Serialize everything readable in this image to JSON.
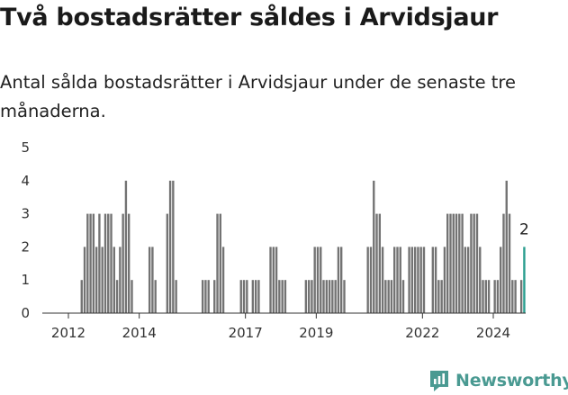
{
  "header": {
    "title": "Två bostadsrätter såldes i Arvidsjaur",
    "subtitle": "Antal sålda bostadsrätter i Arvidsjaur under de senaste tre månaderna."
  },
  "brand": {
    "name": "Newsworthy",
    "icon": "newsworthy-logo-icon",
    "color": "#4a9a92"
  },
  "colors": {
    "bar": "#737373",
    "highlight": "#2a9d8f",
    "axis": "#333333",
    "grid": "#e0e0e0"
  },
  "chart_data": {
    "type": "bar",
    "ylim": [
      0,
      5
    ],
    "yticks": [
      0,
      1,
      2,
      3,
      4,
      5
    ],
    "xlim": [
      2011.5,
      2025.5
    ],
    "xticks": [
      2012,
      2014,
      2017,
      2019,
      2022,
      2024
    ],
    "xtick_labels": [
      "2012",
      "2014",
      "2017",
      "2019",
      "2022",
      "2024"
    ],
    "grid": false,
    "annotation": {
      "text": "2",
      "x": 2024.875,
      "y": 2
    },
    "highlight_x": [
      2024.875
    ],
    "points": [
      {
        "x": 2012.375,
        "y": 1
      },
      {
        "x": 2012.458,
        "y": 2
      },
      {
        "x": 2012.542,
        "y": 3
      },
      {
        "x": 2012.625,
        "y": 3
      },
      {
        "x": 2012.708,
        "y": 3
      },
      {
        "x": 2012.792,
        "y": 2
      },
      {
        "x": 2012.875,
        "y": 3
      },
      {
        "x": 2012.958,
        "y": 2
      },
      {
        "x": 2013.042,
        "y": 3
      },
      {
        "x": 2013.125,
        "y": 3
      },
      {
        "x": 2013.208,
        "y": 3
      },
      {
        "x": 2013.292,
        "y": 2
      },
      {
        "x": 2013.375,
        "y": 1
      },
      {
        "x": 2013.458,
        "y": 2
      },
      {
        "x": 2013.542,
        "y": 3
      },
      {
        "x": 2013.625,
        "y": 4
      },
      {
        "x": 2013.708,
        "y": 3
      },
      {
        "x": 2013.792,
        "y": 1
      },
      {
        "x": 2014.292,
        "y": 2
      },
      {
        "x": 2014.375,
        "y": 2
      },
      {
        "x": 2014.458,
        "y": 1
      },
      {
        "x": 2014.792,
        "y": 3
      },
      {
        "x": 2014.875,
        "y": 4
      },
      {
        "x": 2014.958,
        "y": 4
      },
      {
        "x": 2015.042,
        "y": 1
      },
      {
        "x": 2015.792,
        "y": 1
      },
      {
        "x": 2015.875,
        "y": 1
      },
      {
        "x": 2015.958,
        "y": 1
      },
      {
        "x": 2016.125,
        "y": 1
      },
      {
        "x": 2016.208,
        "y": 3
      },
      {
        "x": 2016.292,
        "y": 3
      },
      {
        "x": 2016.375,
        "y": 2
      },
      {
        "x": 2016.875,
        "y": 1
      },
      {
        "x": 2016.958,
        "y": 1
      },
      {
        "x": 2017.042,
        "y": 1
      },
      {
        "x": 2017.208,
        "y": 1
      },
      {
        "x": 2017.292,
        "y": 1
      },
      {
        "x": 2017.375,
        "y": 1
      },
      {
        "x": 2017.708,
        "y": 2
      },
      {
        "x": 2017.792,
        "y": 2
      },
      {
        "x": 2017.875,
        "y": 2
      },
      {
        "x": 2017.958,
        "y": 1
      },
      {
        "x": 2018.042,
        "y": 1
      },
      {
        "x": 2018.125,
        "y": 1
      },
      {
        "x": 2018.708,
        "y": 1
      },
      {
        "x": 2018.792,
        "y": 1
      },
      {
        "x": 2018.875,
        "y": 1
      },
      {
        "x": 2018.958,
        "y": 2
      },
      {
        "x": 2019.042,
        "y": 2
      },
      {
        "x": 2019.125,
        "y": 2
      },
      {
        "x": 2019.208,
        "y": 1
      },
      {
        "x": 2019.292,
        "y": 1
      },
      {
        "x": 2019.375,
        "y": 1
      },
      {
        "x": 2019.458,
        "y": 1
      },
      {
        "x": 2019.542,
        "y": 1
      },
      {
        "x": 2019.625,
        "y": 2
      },
      {
        "x": 2019.708,
        "y": 2
      },
      {
        "x": 2019.792,
        "y": 1
      },
      {
        "x": 2020.458,
        "y": 2
      },
      {
        "x": 2020.542,
        "y": 2
      },
      {
        "x": 2020.625,
        "y": 4
      },
      {
        "x": 2020.708,
        "y": 3
      },
      {
        "x": 2020.792,
        "y": 3
      },
      {
        "x": 2020.875,
        "y": 2
      },
      {
        "x": 2020.958,
        "y": 1
      },
      {
        "x": 2021.042,
        "y": 1
      },
      {
        "x": 2021.125,
        "y": 1
      },
      {
        "x": 2021.208,
        "y": 2
      },
      {
        "x": 2021.292,
        "y": 2
      },
      {
        "x": 2021.375,
        "y": 2
      },
      {
        "x": 2021.458,
        "y": 1
      },
      {
        "x": 2021.625,
        "y": 2
      },
      {
        "x": 2021.708,
        "y": 2
      },
      {
        "x": 2021.792,
        "y": 2
      },
      {
        "x": 2021.875,
        "y": 2
      },
      {
        "x": 2021.958,
        "y": 2
      },
      {
        "x": 2022.042,
        "y": 2
      },
      {
        "x": 2022.292,
        "y": 2
      },
      {
        "x": 2022.375,
        "y": 2
      },
      {
        "x": 2022.458,
        "y": 1
      },
      {
        "x": 2022.542,
        "y": 1
      },
      {
        "x": 2022.625,
        "y": 2
      },
      {
        "x": 2022.708,
        "y": 3
      },
      {
        "x": 2022.792,
        "y": 3
      },
      {
        "x": 2022.875,
        "y": 3
      },
      {
        "x": 2022.958,
        "y": 3
      },
      {
        "x": 2023.042,
        "y": 3
      },
      {
        "x": 2023.125,
        "y": 3
      },
      {
        "x": 2023.208,
        "y": 2
      },
      {
        "x": 2023.292,
        "y": 2
      },
      {
        "x": 2023.375,
        "y": 3
      },
      {
        "x": 2023.458,
        "y": 3
      },
      {
        "x": 2023.542,
        "y": 3
      },
      {
        "x": 2023.625,
        "y": 2
      },
      {
        "x": 2023.708,
        "y": 1
      },
      {
        "x": 2023.792,
        "y": 1
      },
      {
        "x": 2023.875,
        "y": 1
      },
      {
        "x": 2024.042,
        "y": 1
      },
      {
        "x": 2024.125,
        "y": 1
      },
      {
        "x": 2024.208,
        "y": 2
      },
      {
        "x": 2024.292,
        "y": 3
      },
      {
        "x": 2024.375,
        "y": 4
      },
      {
        "x": 2024.458,
        "y": 3
      },
      {
        "x": 2024.542,
        "y": 1
      },
      {
        "x": 2024.625,
        "y": 1
      },
      {
        "x": 2024.792,
        "y": 1
      },
      {
        "x": 2024.875,
        "y": 2
      }
    ]
  }
}
